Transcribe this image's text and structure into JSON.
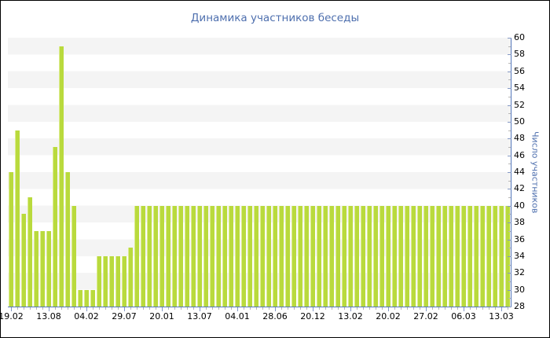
{
  "title": "Динамика участников беседы",
  "y_axis": {
    "label": "Число участников",
    "min": 28,
    "max": 60,
    "major_step": 2,
    "tick_labels": [
      "28",
      "30",
      "32",
      "34",
      "36",
      "38",
      "40",
      "42",
      "44",
      "46",
      "48",
      "50",
      "52",
      "54",
      "56",
      "58",
      "60"
    ]
  },
  "x_axis": {
    "tick_labels": [
      "19.02",
      "13.08",
      "04.02",
      "29.07",
      "20.01",
      "13.07",
      "04.01",
      "28.06",
      "20.12",
      "13.02",
      "20.02",
      "27.02",
      "06.03",
      "13.03"
    ]
  },
  "chart_data": {
    "type": "bar",
    "title": "Динамика участников беседы",
    "xlabel": "",
    "ylabel": "Число участников",
    "ylim": [
      28,
      60
    ],
    "grid": "horizontal-stripes",
    "legend": "none",
    "bars_per_x_tick": 6,
    "x_tick_labels": [
      "19.02",
      "13.08",
      "04.02",
      "29.07",
      "20.01",
      "13.07",
      "04.01",
      "28.06",
      "20.12",
      "13.02",
      "20.02",
      "27.02",
      "06.03",
      "13.03"
    ],
    "values": [
      44,
      49,
      39,
      41,
      37,
      37,
      37,
      47,
      59,
      44,
      40,
      30,
      30,
      30,
      34,
      34,
      34,
      34,
      34,
      35,
      40,
      40,
      40,
      40,
      40,
      40,
      40,
      40,
      40,
      40,
      40,
      40,
      40,
      40,
      40,
      40,
      40,
      40,
      40,
      40,
      40,
      40,
      40,
      40,
      40,
      40,
      40,
      40,
      40,
      40,
      40,
      40,
      40,
      40,
      40,
      40,
      40,
      40,
      40,
      40,
      40,
      40,
      40,
      40,
      40,
      40,
      40,
      40,
      40,
      40,
      40,
      40,
      40,
      40,
      40,
      40,
      40,
      40,
      40,
      40
    ]
  },
  "colors": {
    "bar": "#b9da3d",
    "bar_edge_highlight": "#dcebx8e",
    "bar_highlight": "#dcec8e",
    "text": "#4e6fae",
    "axis_line": "#5577bb",
    "major_tick": "#8498c4",
    "minor_tick": "#b5b5b5",
    "stripe": "#f4f4f4",
    "background": "#ffffff"
  }
}
